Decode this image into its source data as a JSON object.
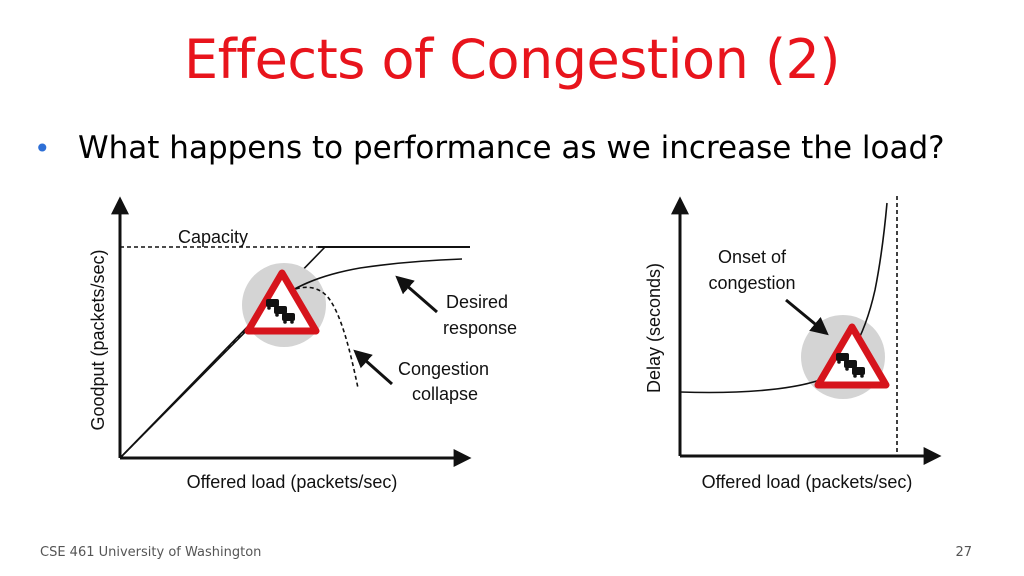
{
  "slide": {
    "title": "Effects of Congestion (2)",
    "bullet": "What happens to performance as we increase the load?"
  },
  "left_diagram": {
    "y_axis_label": "Goodput (packets/sec)",
    "x_axis_label": "Offered load (packets/sec)",
    "capacity_label": "Capacity",
    "desired_line1": "Desired",
    "desired_line2": "response",
    "collapse_line1": "Congestion",
    "collapse_line2": "collapse",
    "warning_icon": "traffic-jam-warning-icon"
  },
  "right_diagram": {
    "y_axis_label": "Delay (seconds)",
    "x_axis_label": "Offered load (packets/sec)",
    "onset_line1": "Onset of",
    "onset_line2": "congestion",
    "warning_icon": "traffic-jam-warning-icon"
  },
  "footer": {
    "course": "CSE 461 University of Washington",
    "page_number": "27"
  },
  "colors": {
    "title": "#e8141c",
    "bullet": "#2e6fd6",
    "warning_border": "#d6141c",
    "halo": "#d4d4d4"
  }
}
